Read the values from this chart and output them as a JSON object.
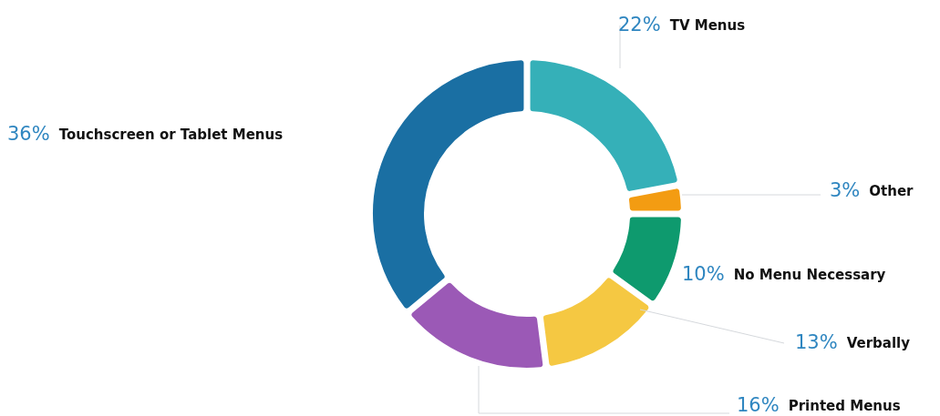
{
  "chart_data": {
    "type": "donut",
    "categories": [
      "TV Menus",
      "Other",
      "No Menu Necessary",
      "Verbally",
      "Printed Menus",
      "Touchscreen or Tablet Menus"
    ],
    "values": [
      22,
      3,
      10,
      13,
      16,
      36
    ],
    "colors": [
      "#35b0b8",
      "#f39c12",
      "#0e9a6e",
      "#f5c842",
      "#9b59b6",
      "#1a6fa3"
    ],
    "value_labels": [
      "22%",
      "3%",
      "10%",
      "13%",
      "16%",
      "36%"
    ]
  }
}
